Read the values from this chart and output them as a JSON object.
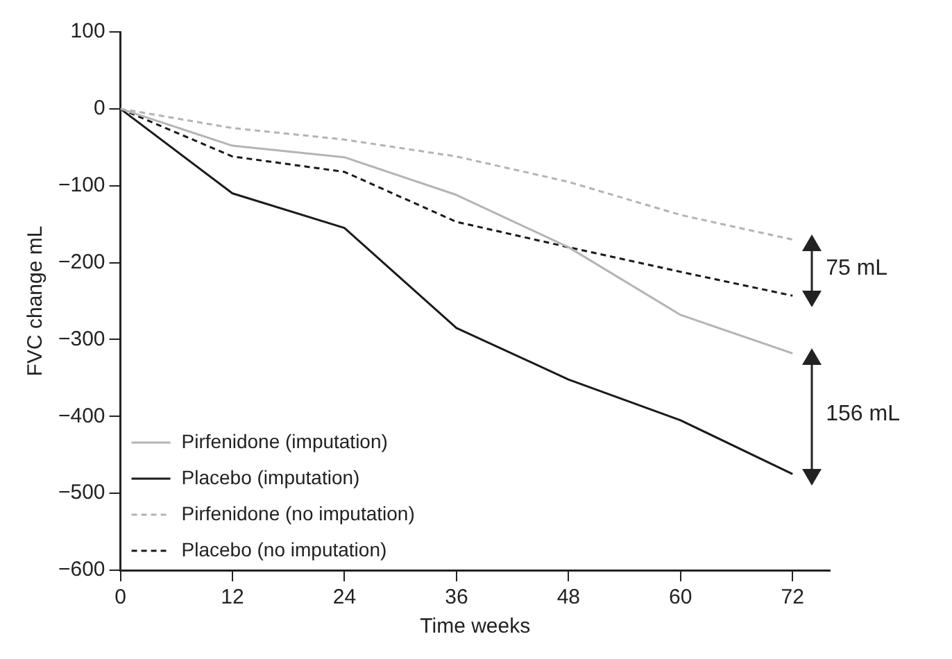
{
  "chart_data": {
    "type": "line",
    "xlabel": "Time weeks",
    "ylabel": "FVC change mL",
    "x": [
      0,
      12,
      24,
      36,
      48,
      60,
      72
    ],
    "series": [
      {
        "name": "Pirfenidone (imputation)",
        "color": "#b4b4b4",
        "line_style": "solid",
        "values": [
          0,
          -48,
          -63,
          -112,
          -180,
          -268,
          -318
        ]
      },
      {
        "name": "Placebo (imputation)",
        "color": "#1a1a1a",
        "line_style": "solid",
        "values": [
          0,
          -110,
          -155,
          -285,
          -352,
          -405,
          -475
        ]
      },
      {
        "name": "Pirfenidone (no imputation)",
        "color": "#b4b4b4",
        "line_style": "dashed",
        "values": [
          0,
          -25,
          -40,
          -62,
          -95,
          -138,
          -170
        ]
      },
      {
        "name": "Placebo (no imputation)",
        "color": "#1a1a1a",
        "line_style": "dashed",
        "values": [
          0,
          -62,
          -82,
          -147,
          -180,
          -212,
          -243
        ]
      }
    ],
    "xlim": [
      0,
      76
    ],
    "xticks": [
      0,
      12,
      24,
      36,
      48,
      60,
      72
    ],
    "ylim": [
      -600,
      100
    ],
    "yticks": [
      {
        "value": -600,
        "label": "−600"
      },
      {
        "value": -500,
        "label": "−500"
      },
      {
        "value": -400,
        "label": "−400"
      },
      {
        "value": -300,
        "label": "−300"
      },
      {
        "value": -200,
        "label": "−200"
      },
      {
        "value": -100,
        "label": "−100"
      },
      0,
      100
    ],
    "annotations": [
      "75 mL",
      "156 mL"
    ],
    "legend": "bottom left",
    "grid": false,
    "marker": "none"
  }
}
